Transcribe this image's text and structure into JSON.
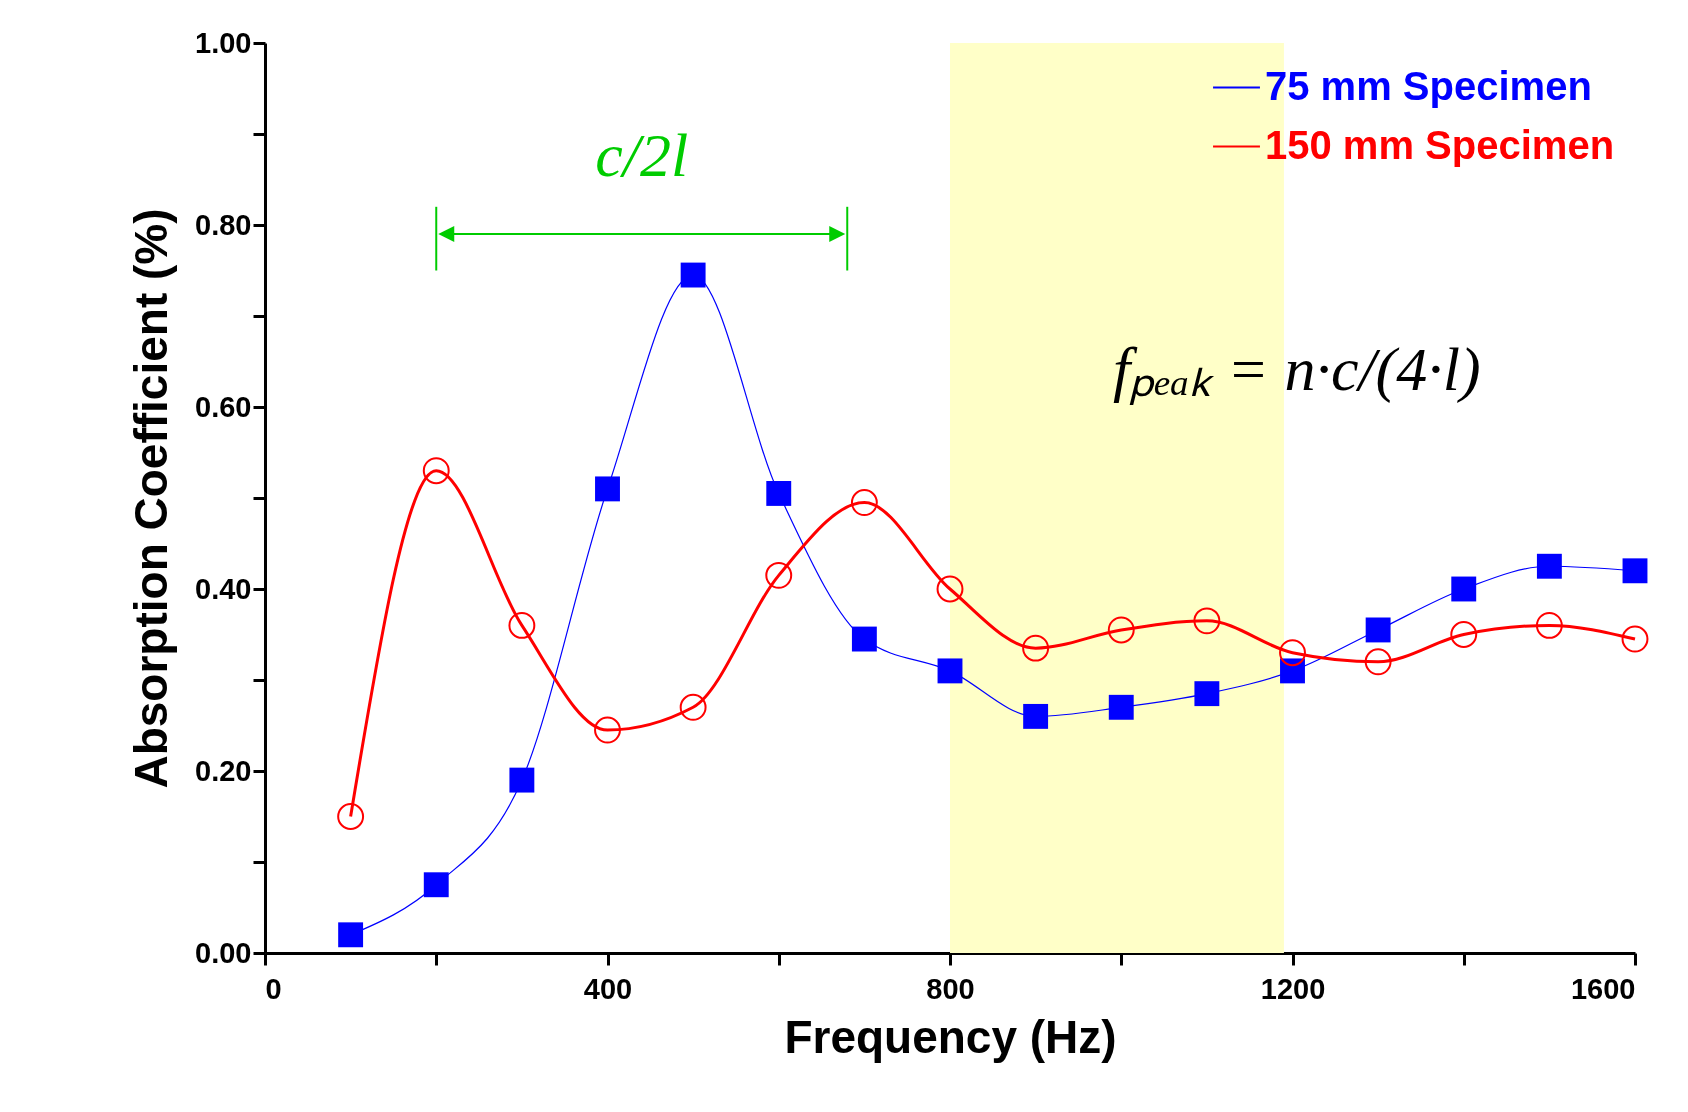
{
  "chart_data": {
    "type": "line",
    "xlabel": "Frequency (Hz)",
    "ylabel": "Absorption Coefficient (%)",
    "xlim": [
      0,
      1600
    ],
    "xticks": [
      0,
      {
        "value": 200,
        "label": null
      },
      400,
      {
        "value": 600,
        "label": null
      },
      800,
      {
        "value": 1000,
        "label": null
      },
      1200,
      {
        "value": 1400,
        "label": null
      },
      1600
    ],
    "ylim": [
      0,
      1
    ],
    "yticks": [
      {
        "value": 0,
        "label": "0.00"
      },
      {
        "value": 0.1,
        "label": null
      },
      {
        "value": 0.2,
        "label": "0.20"
      },
      {
        "value": 0.3,
        "label": null
      },
      {
        "value": 0.4,
        "label": "0.40"
      },
      {
        "value": 0.5,
        "label": null
      },
      {
        "value": 0.6,
        "label": "0.60"
      },
      {
        "value": 0.7,
        "label": null
      },
      {
        "value": 0.8,
        "label": "0.80"
      },
      {
        "value": 0.9,
        "label": null
      },
      {
        "value": 1,
        "label": "1.00"
      }
    ],
    "x": [
      100,
      200,
      300,
      400,
      500,
      600,
      700,
      800,
      900,
      1000,
      1100,
      1200,
      1300,
      1400,
      1500,
      1600
    ],
    "series": [
      {
        "name": "75 mm Specimen",
        "color": "#0000ff",
        "marker": "square",
        "values": [
          0.02,
          0.075,
          0.19,
          0.51,
          0.745,
          0.505,
          0.345,
          0.31,
          0.26,
          0.27,
          0.285,
          0.31,
          0.355,
          0.4,
          0.425,
          0.42
        ]
      },
      {
        "name": "150 mm Specimen",
        "color": "#ff0000",
        "marker": "circle",
        "values": [
          0.15,
          0.53,
          0.36,
          0.245,
          0.27,
          0.415,
          0.495,
          0.4,
          0.335,
          0.355,
          0.365,
          0.33,
          0.32,
          0.35,
          0.36,
          0.345
        ]
      }
    ],
    "bands": [
      {
        "axis": "x",
        "from": 800,
        "to": 1190,
        "color": "#ffffc8"
      }
    ],
    "annotations": [
      "c/2l",
      "fₚₑₐₖ = n·c/(4·l)"
    ],
    "legend": "top right",
    "grid": false
  }
}
